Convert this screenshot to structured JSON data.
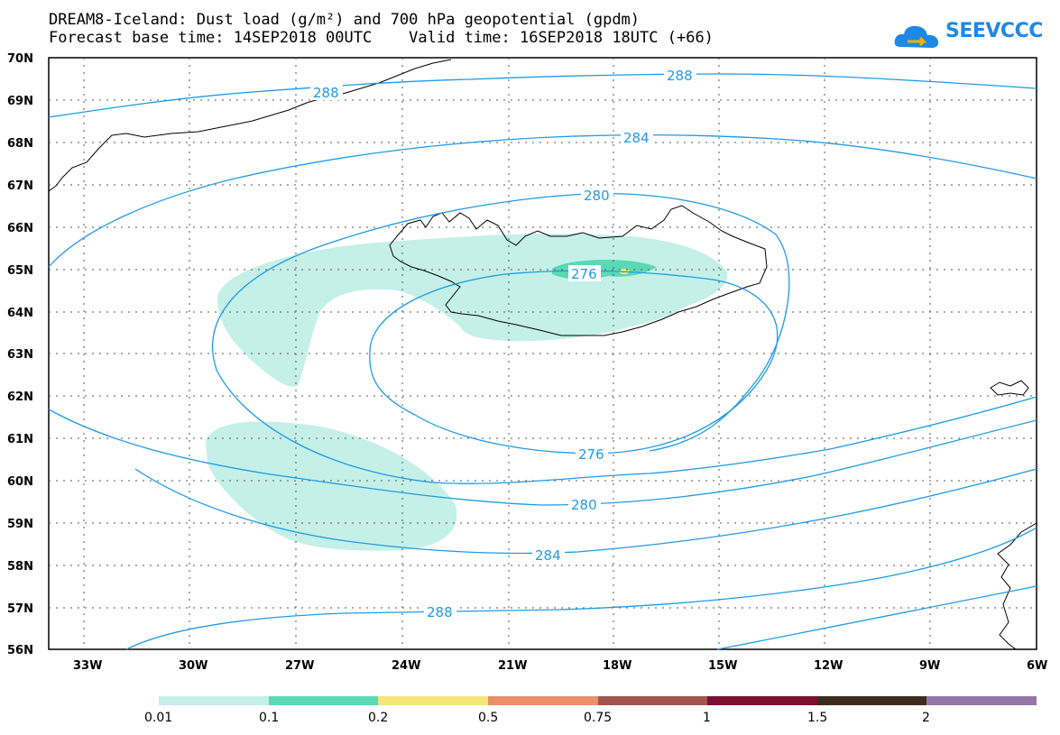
{
  "header": {
    "title_line1": "DREAM8-Iceland: Dust load (g/m²) and 700 hPa geopotential (gpdm)",
    "title_line2": "Forecast base time: 14SEP2018 00UTC    Valid time: 16SEP2018 18UTC (+66)"
  },
  "logo": {
    "text": "SEEVCCC",
    "icon": "cloud-logo-icon",
    "color": "#1e88e5"
  },
  "axes": {
    "lat_labels": [
      "70N",
      "69N",
      "68N",
      "67N",
      "66N",
      "65N",
      "64N",
      "63N",
      "62N",
      "61N",
      "60N",
      "59N",
      "58N",
      "57N",
      "56N"
    ],
    "lon_labels": [
      "33W",
      "30W",
      "27W",
      "24W",
      "21W",
      "18W",
      "15W",
      "12W",
      "9W",
      "6W"
    ],
    "lat_range": [
      56,
      70
    ],
    "lon_range": [
      -34.5,
      -6
    ],
    "grid": "dotted"
  },
  "contours": {
    "field": "700 hPa geopotential (gpdm)",
    "color": "#1e9be6",
    "labels": [
      "288",
      "288",
      "284",
      "280",
      "276",
      "276",
      "280",
      "284",
      "288"
    ]
  },
  "legend": {
    "labels": [
      "0.01",
      "0.1",
      "0.2",
      "0.5",
      "0.75",
      "1",
      "1.5",
      "2"
    ],
    "colors": [
      "#c4f0e8",
      "#5ad9b4",
      "#f2e87a",
      "#e8906a",
      "#a2554e",
      "#7d0f33",
      "#3d2b1b",
      "#9575a8"
    ]
  },
  "colors": {
    "dust_light": "#c4f0e8",
    "dust_mid": "#5ad9b4",
    "dust_high": "#f2e87a",
    "contour": "#1e9be6",
    "coast": "#000000"
  }
}
